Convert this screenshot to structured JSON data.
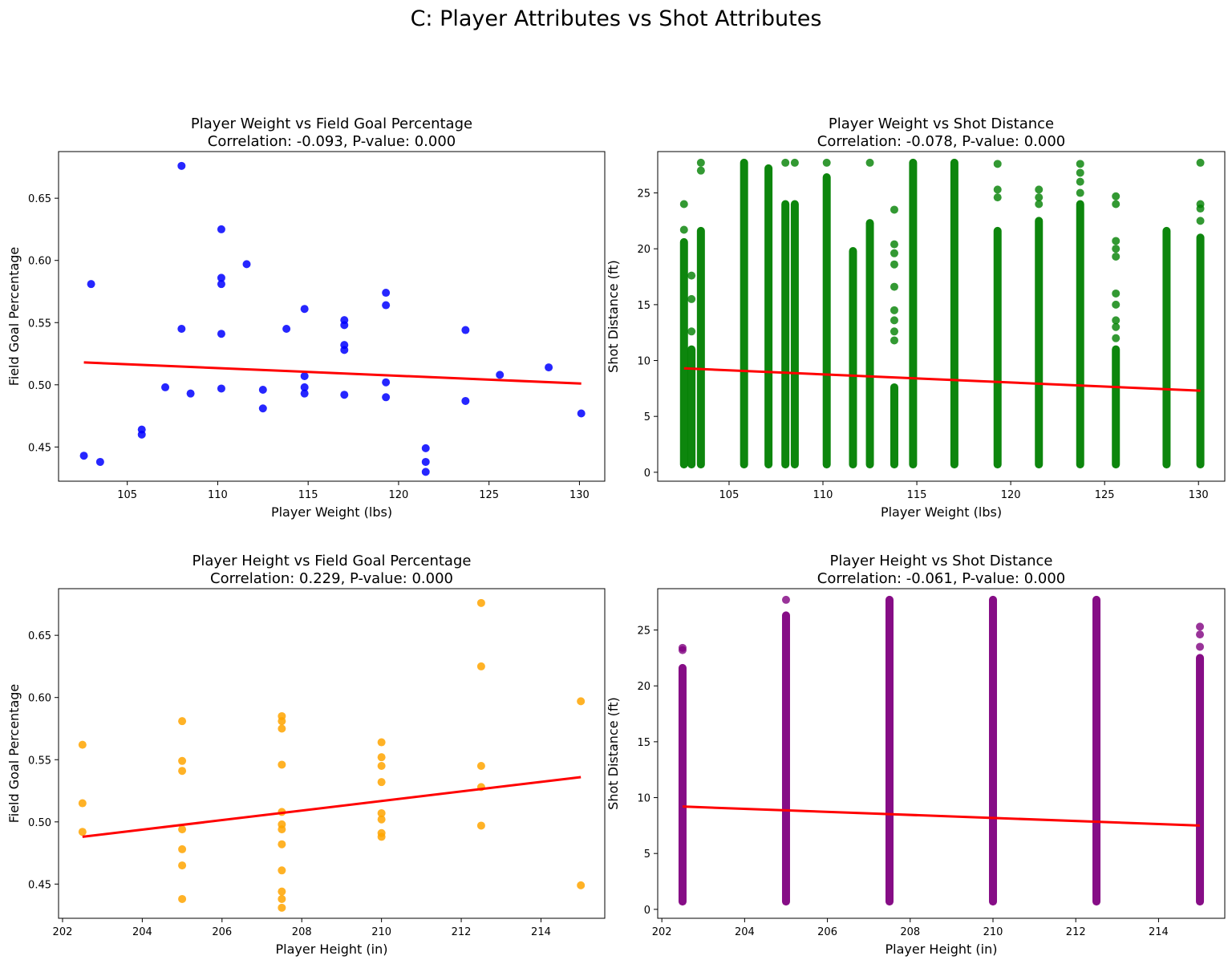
{
  "figure_title": "C: Player Attributes vs Shot Attributes",
  "chart_data": [
    {
      "type": "scatter",
      "title": "Player Weight vs Field Goal Percentage",
      "subtitle": "Correlation: -0.093, P-value: 0.000",
      "xlabel": "Player Weight (lbs)",
      "ylabel": "Field Goal Percentage",
      "xlim": [
        101.2,
        131.4
      ],
      "ylim": [
        0.4225,
        0.6875
      ],
      "xticks": [
        105,
        110,
        115,
        120,
        125,
        130
      ],
      "yticks": [
        0.45,
        0.5,
        0.55,
        0.6,
        0.65
      ],
      "ytick_decimals": 2,
      "point_color": "#0000ff",
      "line_color": "#ff0000",
      "grid": false,
      "points": [
        [
          102.6,
          0.443
        ],
        [
          103.0,
          0.581
        ],
        [
          103.5,
          0.438
        ],
        [
          105.8,
          0.46
        ],
        [
          105.8,
          0.464
        ],
        [
          107.1,
          0.498
        ],
        [
          108.0,
          0.676
        ],
        [
          108.0,
          0.545
        ],
        [
          108.5,
          0.493
        ],
        [
          110.2,
          0.625
        ],
        [
          110.2,
          0.586
        ],
        [
          110.2,
          0.581
        ],
        [
          110.2,
          0.541
        ],
        [
          110.2,
          0.497
        ],
        [
          111.6,
          0.597
        ],
        [
          112.5,
          0.496
        ],
        [
          112.5,
          0.481
        ],
        [
          113.8,
          0.545
        ],
        [
          114.8,
          0.561
        ],
        [
          114.8,
          0.507
        ],
        [
          114.8,
          0.498
        ],
        [
          114.8,
          0.493
        ],
        [
          117.0,
          0.552
        ],
        [
          117.0,
          0.548
        ],
        [
          117.0,
          0.532
        ],
        [
          117.0,
          0.528
        ],
        [
          117.0,
          0.492
        ],
        [
          119.3,
          0.574
        ],
        [
          119.3,
          0.564
        ],
        [
          119.3,
          0.502
        ],
        [
          119.3,
          0.49
        ],
        [
          121.5,
          0.449
        ],
        [
          121.5,
          0.438
        ],
        [
          121.5,
          0.43
        ],
        [
          123.7,
          0.544
        ],
        [
          123.7,
          0.487
        ],
        [
          125.6,
          0.508
        ],
        [
          128.3,
          0.514
        ],
        [
          130.1,
          0.477
        ]
      ],
      "fit": [
        [
          102.6,
          0.518
        ],
        [
          130.1,
          0.501
        ]
      ]
    },
    {
      "type": "scatter",
      "title": "Player Weight vs Shot Distance",
      "subtitle": "Correlation: -0.078, P-value: 0.000",
      "xlabel": "Player Weight (lbs)",
      "ylabel": "Shot Distance (ft)",
      "xlim": [
        101.2,
        131.4
      ],
      "ylim": [
        -0.8,
        28.7
      ],
      "xticks": [
        105,
        110,
        115,
        120,
        125,
        130
      ],
      "yticks": [
        0,
        5,
        10,
        15,
        20,
        25
      ],
      "ytick_decimals": 0,
      "point_color": "#008000",
      "line_color": "#ff0000",
      "grid": false,
      "columns": [
        {
          "x": 102.6,
          "min": 0.7,
          "dense_max": 20.6,
          "outliers": [
            21.7,
            24.0
          ]
        },
        {
          "x": 103.0,
          "min": 0.7,
          "dense_max": 11.0,
          "outliers": [
            12.6,
            15.5,
            17.6
          ]
        },
        {
          "x": 103.5,
          "min": 0.7,
          "dense_max": 21.6,
          "outliers": [
            27.0,
            27.7
          ]
        },
        {
          "x": 105.8,
          "min": 0.7,
          "dense_max": 27.7,
          "outliers": []
        },
        {
          "x": 107.1,
          "min": 0.7,
          "dense_max": 27.2,
          "outliers": []
        },
        {
          "x": 108.0,
          "min": 0.7,
          "dense_max": 24.0,
          "outliers": [
            27.7
          ]
        },
        {
          "x": 108.5,
          "min": 0.7,
          "dense_max": 24.0,
          "outliers": [
            27.7
          ]
        },
        {
          "x": 110.2,
          "min": 0.7,
          "dense_max": 26.4,
          "outliers": [
            27.7
          ]
        },
        {
          "x": 111.6,
          "min": 0.7,
          "dense_max": 19.8,
          "outliers": []
        },
        {
          "x": 112.5,
          "min": 0.7,
          "dense_max": 22.3,
          "outliers": [
            27.7
          ]
        },
        {
          "x": 113.8,
          "min": 0.7,
          "dense_max": 7.6,
          "outliers": [
            11.8,
            12.6,
            13.6,
            14.5,
            16.6,
            18.6,
            19.6,
            20.4,
            23.5
          ]
        },
        {
          "x": 114.8,
          "min": 0.7,
          "dense_max": 27.7,
          "outliers": []
        },
        {
          "x": 117.0,
          "min": 0.7,
          "dense_max": 27.7,
          "outliers": []
        },
        {
          "x": 119.3,
          "min": 0.7,
          "dense_max": 21.6,
          "outliers": [
            24.6,
            25.3,
            27.6
          ]
        },
        {
          "x": 121.5,
          "min": 0.7,
          "dense_max": 22.5,
          "outliers": [
            24.0,
            24.6,
            25.3
          ]
        },
        {
          "x": 123.7,
          "min": 0.7,
          "dense_max": 24.0,
          "outliers": [
            25.0,
            26.0,
            26.8,
            27.6
          ]
        },
        {
          "x": 125.6,
          "min": 0.7,
          "dense_max": 11.0,
          "outliers": [
            12.0,
            13.0,
            13.6,
            15.0,
            16.0,
            19.3,
            20.0,
            20.7,
            24.0,
            24.7
          ]
        },
        {
          "x": 128.3,
          "min": 0.7,
          "dense_max": 21.6,
          "outliers": []
        },
        {
          "x": 130.1,
          "min": 0.7,
          "dense_max": 21.0,
          "outliers": [
            22.5,
            23.6,
            24.0,
            27.7
          ]
        }
      ],
      "fit": [
        [
          102.6,
          9.3
        ],
        [
          130.1,
          7.3
        ]
      ]
    },
    {
      "type": "scatter",
      "title": "Player Height vs Field Goal Percentage",
      "subtitle": "Correlation: 0.229, P-value: 0.000",
      "xlabel": "Player Height (in)",
      "ylabel": "Field Goal Percentage",
      "xlim": [
        201.9,
        215.6
      ],
      "ylim": [
        0.4225,
        0.6875
      ],
      "xticks": [
        202,
        204,
        206,
        208,
        210,
        212,
        214
      ],
      "yticks": [
        0.45,
        0.5,
        0.55,
        0.6,
        0.65
      ],
      "ytick_decimals": 2,
      "point_color": "#ffa500",
      "line_color": "#ff0000",
      "grid": false,
      "points": [
        [
          202.5,
          0.562
        ],
        [
          202.5,
          0.515
        ],
        [
          202.5,
          0.492
        ],
        [
          205.0,
          0.581
        ],
        [
          205.0,
          0.549
        ],
        [
          205.0,
          0.541
        ],
        [
          205.0,
          0.494
        ],
        [
          205.0,
          0.478
        ],
        [
          205.0,
          0.465
        ],
        [
          205.0,
          0.438
        ],
        [
          207.5,
          0.585
        ],
        [
          207.5,
          0.581
        ],
        [
          207.5,
          0.575
        ],
        [
          207.5,
          0.546
        ],
        [
          207.5,
          0.508
        ],
        [
          207.5,
          0.498
        ],
        [
          207.5,
          0.494
        ],
        [
          207.5,
          0.482
        ],
        [
          207.5,
          0.461
        ],
        [
          207.5,
          0.444
        ],
        [
          207.5,
          0.438
        ],
        [
          207.5,
          0.431
        ],
        [
          210.0,
          0.564
        ],
        [
          210.0,
          0.552
        ],
        [
          210.0,
          0.545
        ],
        [
          210.0,
          0.532
        ],
        [
          210.0,
          0.507
        ],
        [
          210.0,
          0.502
        ],
        [
          210.0,
          0.491
        ],
        [
          210.0,
          0.488
        ],
        [
          212.5,
          0.676
        ],
        [
          212.5,
          0.625
        ],
        [
          212.5,
          0.545
        ],
        [
          212.5,
          0.528
        ],
        [
          212.5,
          0.497
        ],
        [
          215.0,
          0.597
        ],
        [
          215.0,
          0.449
        ]
      ],
      "fit": [
        [
          202.5,
          0.488
        ],
        [
          215.0,
          0.536
        ]
      ]
    },
    {
      "type": "scatter",
      "title": "Player Height vs Shot Distance",
      "subtitle": "Correlation: -0.061, P-value: 0.000",
      "xlabel": "Player Height (in)",
      "ylabel": "Shot Distance (ft)",
      "xlim": [
        201.9,
        215.6
      ],
      "ylim": [
        -0.8,
        28.7
      ],
      "xticks": [
        202,
        204,
        206,
        208,
        210,
        212,
        214
      ],
      "yticks": [
        0,
        5,
        10,
        15,
        20,
        25
      ],
      "ytick_decimals": 0,
      "point_color": "#800080",
      "line_color": "#ff0000",
      "grid": false,
      "columns": [
        {
          "x": 202.5,
          "min": 0.7,
          "dense_max": 21.6,
          "outliers": [
            23.2,
            23.4
          ]
        },
        {
          "x": 205.0,
          "min": 0.7,
          "dense_max": 26.3,
          "outliers": [
            27.7
          ]
        },
        {
          "x": 207.5,
          "min": 0.7,
          "dense_max": 27.7,
          "outliers": []
        },
        {
          "x": 210.0,
          "min": 0.7,
          "dense_max": 27.7,
          "outliers": []
        },
        {
          "x": 212.5,
          "min": 0.7,
          "dense_max": 27.7,
          "outliers": []
        },
        {
          "x": 215.0,
          "min": 0.7,
          "dense_max": 22.5,
          "outliers": [
            23.5,
            24.6,
            25.3
          ]
        }
      ],
      "fit": [
        [
          202.5,
          9.2
        ],
        [
          215.0,
          7.5
        ]
      ]
    }
  ]
}
